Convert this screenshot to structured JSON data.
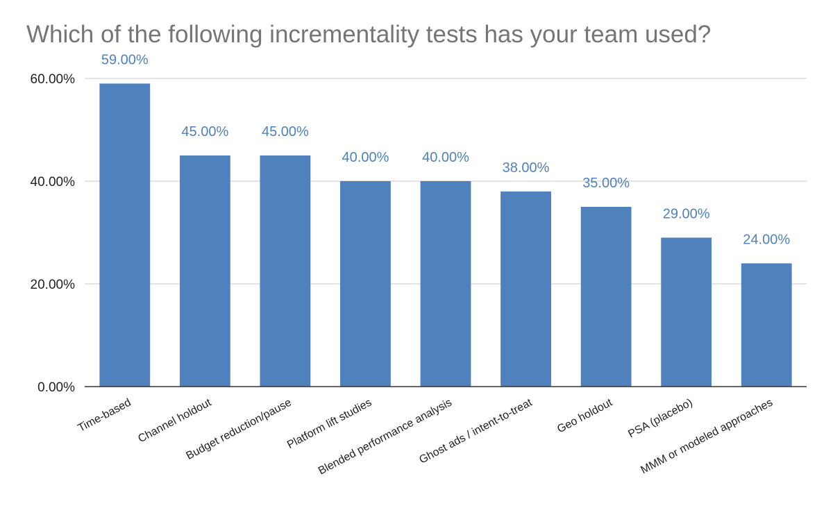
{
  "chart_data": {
    "type": "bar",
    "title": "Which of the following incrementality tests has your team used?",
    "categories": [
      "Time-based",
      "Channel holdout",
      "Budget reduction/pause",
      "Platform lift studies",
      "Blended performance analysis",
      "Ghost ads / intent-to-treat",
      "Geo holdout",
      "PSA (placebo)",
      "MMM or modeled approaches"
    ],
    "values": [
      59,
      45,
      45,
      40,
      40,
      38,
      35,
      29,
      24
    ],
    "data_labels": [
      "59.00%",
      "45.00%",
      "45.00%",
      "40.00%",
      "40.00%",
      "38.00%",
      "35.00%",
      "29.00%",
      "24.00%"
    ],
    "yticks": [
      0,
      20,
      40,
      60
    ],
    "ytick_labels": [
      "0.00%",
      "20.00%",
      "40.00%",
      "60.00%"
    ],
    "ylim": [
      0,
      60
    ],
    "xlabel": "",
    "ylabel": "",
    "grid": true,
    "legend": "none",
    "bar_color": "#4f81bd",
    "data_label_color": "#4f81bd",
    "title_color": "#757575"
  }
}
